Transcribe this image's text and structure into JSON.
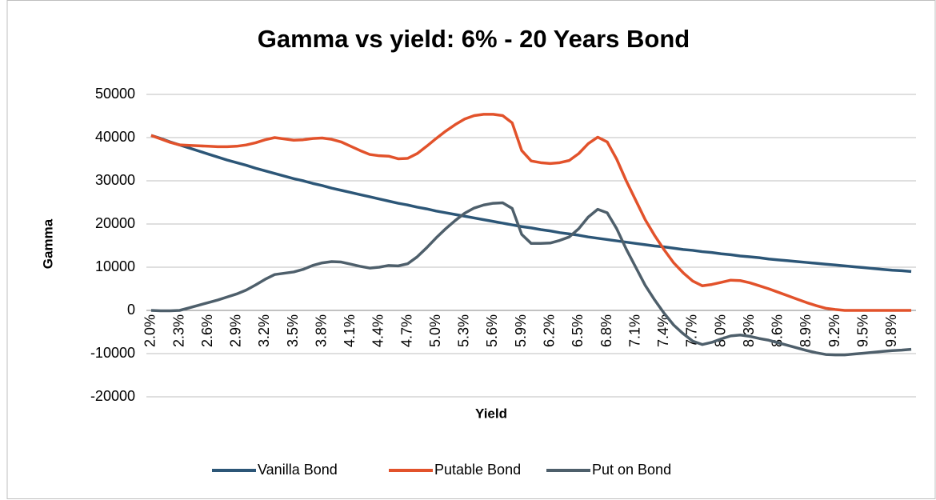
{
  "chart_data": {
    "type": "line",
    "title": "Gamma vs yield: 6% - 20 Years Bond",
    "x_label": "Yield",
    "y_label": "Gamma",
    "categories": [
      "2.0%",
      null,
      null,
      "2.3%",
      null,
      null,
      "2.6%",
      null,
      null,
      "2.9%",
      null,
      null,
      "3.2%",
      null,
      null,
      "3.5%",
      null,
      null,
      "3.8%",
      null,
      null,
      "4.1%",
      null,
      null,
      "4.4%",
      null,
      null,
      "4.7%",
      null,
      null,
      "5.0%",
      null,
      null,
      "5.3%",
      null,
      null,
      "5.6%",
      null,
      null,
      "5.9%",
      null,
      null,
      "6.2%",
      null,
      null,
      "6.5%",
      null,
      null,
      "6.8%",
      null,
      null,
      "7.1%",
      null,
      null,
      "7.4%",
      null,
      null,
      "7.7%",
      null,
      null,
      "8.0%",
      null,
      null,
      "8.3%",
      null,
      null,
      "8.6%",
      null,
      null,
      "8.9%",
      null,
      null,
      "9.2%",
      null,
      null,
      "9.5%",
      null,
      null,
      "9.8%",
      null,
      null
    ],
    "series": [
      {
        "name": "Vanilla Bond",
        "color": "#2c5677",
        "values": [
          40500,
          39800,
          39000,
          38300,
          37600,
          36900,
          36200,
          35500,
          34800,
          34200,
          33600,
          32900,
          32300,
          31700,
          31100,
          30500,
          30000,
          29400,
          28900,
          28300,
          27800,
          27300,
          26800,
          26300,
          25800,
          25300,
          24800,
          24400,
          23900,
          23500,
          23000,
          22600,
          22200,
          21800,
          21400,
          21000,
          20600,
          20200,
          19800,
          19400,
          19100,
          18700,
          18400,
          18000,
          17700,
          17400,
          17000,
          16700,
          16400,
          16100,
          15800,
          15500,
          15200,
          14900,
          14700,
          14400,
          14100,
          13900,
          13600,
          13400,
          13100,
          12900,
          12600,
          12400,
          12200,
          11900,
          11700,
          11500,
          11300,
          11100,
          10900,
          10700,
          10500,
          10300,
          10100,
          9900,
          9700,
          9500,
          9300,
          9200,
          9000
        ]
      },
      {
        "name": "Putable Bond",
        "color": "#e2522b",
        "values": [
          40500,
          39700,
          38900,
          38300,
          38200,
          38100,
          38000,
          37900,
          37900,
          38000,
          38300,
          38800,
          39500,
          40000,
          39700,
          39400,
          39500,
          39800,
          39900,
          39600,
          39000,
          38000,
          37000,
          36100,
          35800,
          35700,
          35100,
          35200,
          36300,
          38000,
          39800,
          41500,
          43000,
          44300,
          45100,
          45400,
          45400,
          45100,
          43400,
          37000,
          34600,
          34200,
          34000,
          34200,
          34700,
          36300,
          38600,
          40100,
          39000,
          35000,
          30000,
          25500,
          21000,
          17300,
          14000,
          11000,
          8700,
          6800,
          5700,
          6000,
          6500,
          7000,
          6900,
          6400,
          5700,
          5000,
          4200,
          3400,
          2600,
          1800,
          1100,
          500,
          200,
          0,
          0,
          0,
          0,
          0,
          0,
          0,
          0
        ]
      },
      {
        "name": "Put on Bond",
        "color": "#4e5f6b",
        "values": [
          0,
          -100,
          -100,
          0,
          600,
          1200,
          1800,
          2400,
          3100,
          3800,
          4700,
          5900,
          7200,
          8300,
          8600,
          8900,
          9500,
          10400,
          11000,
          11300,
          11200,
          10700,
          10200,
          9800,
          10000,
          10400,
          10300,
          10800,
          12400,
          14500,
          16800,
          18900,
          20800,
          22500,
          23700,
          24400,
          24800,
          24900,
          23600,
          17600,
          15500,
          15500,
          15600,
          16200,
          17000,
          18900,
          21600,
          23400,
          22600,
          18900,
          14200,
          10000,
          5800,
          2400,
          -700,
          -3400,
          -5400,
          -7100,
          -7900,
          -7400,
          -6600,
          -5900,
          -5700,
          -6000,
          -6500,
          -6900,
          -7500,
          -8100,
          -8700,
          -9300,
          -9800,
          -10200,
          -10300,
          -10300,
          -10100,
          -9900,
          -9700,
          -9500,
          -9300,
          -9200,
          -9000
        ]
      }
    ],
    "ylim": [
      -20000,
      50000
    ],
    "yticks": [
      -20000,
      -10000,
      0,
      10000,
      20000,
      30000,
      40000,
      50000
    ],
    "grid": true,
    "legend": "bottom"
  }
}
